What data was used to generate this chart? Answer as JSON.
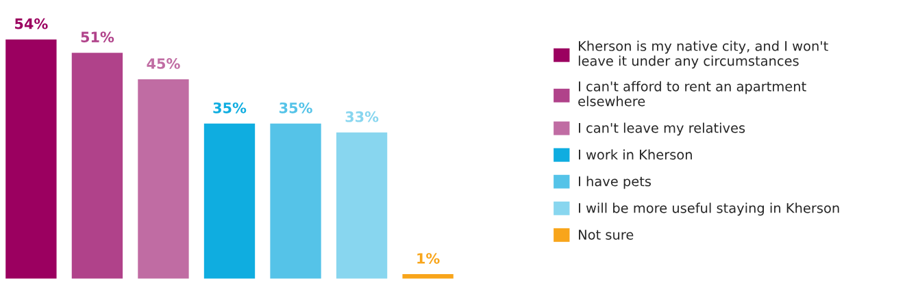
{
  "chart_data": {
    "type": "bar",
    "legend": "right",
    "stacked": true,
    "categories": [
      null,
      null,
      null,
      null,
      null,
      null,
      null
    ],
    "series": [
      {
        "name": "Kherson is my native city, and I won't leave it under any circumstances",
        "color": "#9b0060",
        "values": [
          54,
          0,
          0,
          0,
          0,
          0,
          0
        ],
        "value_labels": [
          "54%",
          null,
          null,
          null,
          null,
          null,
          null
        ]
      },
      {
        "name": "I can't afford to rent an apartment elsewhere",
        "color": "#b0428a",
        "values": [
          0,
          51,
          0,
          0,
          0,
          0,
          0
        ],
        "value_labels": [
          null,
          "51%",
          null,
          null,
          null,
          null,
          null
        ]
      },
      {
        "name": "I can't leave my relatives",
        "color": "#c06ca3",
        "values": [
          0,
          0,
          45,
          0,
          0,
          0,
          0
        ],
        "value_labels": [
          null,
          null,
          "45%",
          null,
          null,
          null,
          null
        ]
      },
      {
        "name": "I work in Kherson",
        "color": "#0fade0",
        "values": [
          0,
          0,
          0,
          35,
          0,
          0,
          0
        ],
        "value_labels": [
          null,
          null,
          null,
          "35%",
          null,
          null,
          null
        ]
      },
      {
        "name": "I have pets",
        "color": "#55c3e8",
        "values": [
          0,
          0,
          0,
          0,
          35,
          0,
          0
        ],
        "value_labels": [
          null,
          null,
          null,
          null,
          "35%",
          null,
          null
        ]
      },
      {
        "name": "I will be more useful staying in Kherson",
        "color": "#88d6ef",
        "values": [
          0,
          0,
          0,
          0,
          0,
          33,
          0
        ],
        "value_labels": [
          null,
          null,
          null,
          null,
          null,
          "33%",
          null
        ]
      },
      {
        "name": "Not sure",
        "color": "#f8a51b",
        "values": [
          0,
          0,
          0,
          0,
          0,
          0,
          1
        ],
        "value_labels": [
          null,
          null,
          null,
          null,
          null,
          null,
          "1%"
        ]
      }
    ]
  }
}
